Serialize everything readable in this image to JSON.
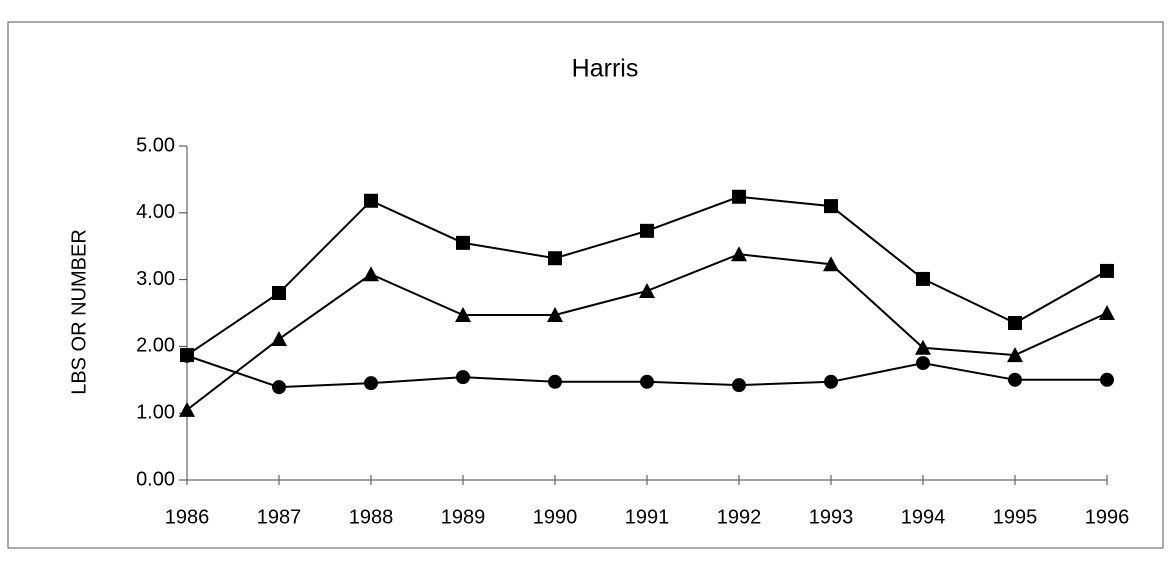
{
  "chart_data": {
    "type": "line",
    "title": "Harris",
    "y_label": "LBS OR NUMBER",
    "categories": [
      "1986",
      "1987",
      "1988",
      "1989",
      "1990",
      "1991",
      "1992",
      "1993",
      "1994",
      "1995",
      "1996"
    ],
    "series": [
      {
        "color": "#000000",
        "marker": "square",
        "values": [
          1.87,
          2.8,
          4.18,
          3.55,
          3.32,
          3.73,
          4.24,
          4.1,
          3.01,
          2.35,
          3.13
        ]
      },
      {
        "color": "#000000",
        "marker": "triangle",
        "values": [
          1.05,
          2.11,
          3.08,
          2.47,
          2.47,
          2.83,
          3.38,
          3.23,
          1.98,
          1.87,
          2.5
        ]
      },
      {
        "color": "#000000",
        "marker": "circle",
        "values": [
          1.86,
          1.39,
          1.45,
          1.54,
          1.47,
          1.47,
          1.42,
          1.47,
          1.75,
          1.5,
          1.5
        ]
      }
    ],
    "ylim": [
      0,
      5
    ],
    "yticks": [
      {
        "value": 0,
        "label": "0.00"
      },
      {
        "value": 1,
        "label": "1.00"
      },
      {
        "value": 2,
        "label": "2.00"
      },
      {
        "value": 3,
        "label": "3.00"
      },
      {
        "value": 4,
        "label": "4.00"
      },
      {
        "value": 5,
        "label": "5.00"
      }
    ],
    "grid": false
  }
}
